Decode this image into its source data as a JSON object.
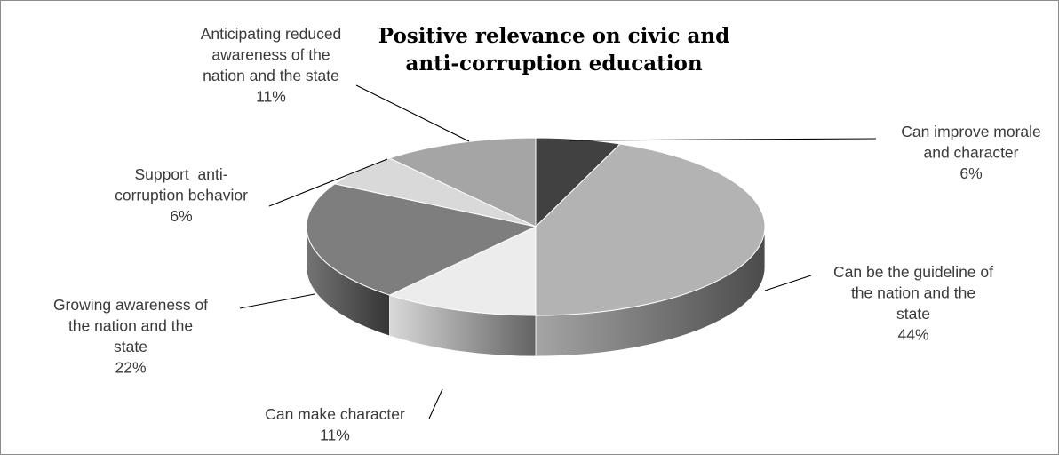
{
  "chart_data": {
    "type": "pie",
    "title": "Positive relevance on civic and anti-corruption education",
    "slices": [
      {
        "label": "Can improve morale and character",
        "label_lines": [
          "Can improve morale",
          "and character"
        ],
        "value": 6,
        "value_label": "6%",
        "color": "#414141"
      },
      {
        "label": "Can be the guideline of the nation and the state",
        "label_lines": [
          "Can be the guideline of",
          "the nation and the",
          "state"
        ],
        "value": 44,
        "value_label": "44%",
        "color": "#b3b3b3"
      },
      {
        "label": "Can make character",
        "label_lines": [
          "Can make character"
        ],
        "value": 11,
        "value_label": "11%",
        "color": "#ececec"
      },
      {
        "label": "Growing awareness of the nation and the state",
        "label_lines": [
          "Growing awareness of",
          "the nation and the",
          "state"
        ],
        "value": 22,
        "value_label": "22%",
        "color": "#7e7e7e"
      },
      {
        "label": "Support anti-corruption behavior",
        "label_lines": [
          "Support  anti-",
          "corruption behavior"
        ],
        "value": 6,
        "value_label": "6%",
        "color": "#d9d9d9"
      },
      {
        "label": "Anticipating reduced awareness of the nation and the state",
        "label_lines": [
          "Anticipating reduced",
          "awareness of the",
          "nation and the state"
        ],
        "value": 11,
        "value_label": "11%",
        "color": "#a5a5a5"
      }
    ]
  }
}
